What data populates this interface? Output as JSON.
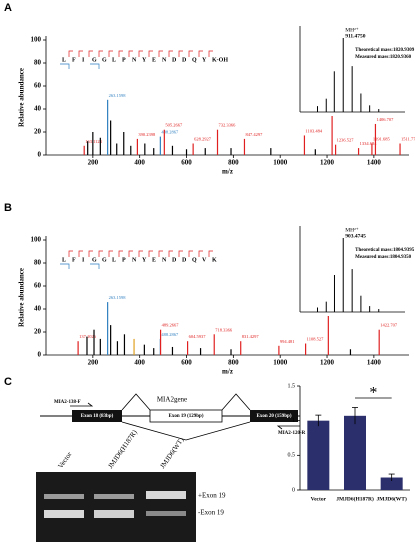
{
  "panel_a": {
    "label": "A",
    "sequence": [
      "L",
      "F",
      "I",
      "G",
      "G",
      "L",
      "P",
      "N",
      "Y",
      "E",
      "N",
      "D",
      "D",
      "Q",
      "Y",
      "K-OH"
    ],
    "y_axis_label": "Relative abundance",
    "x_axis_label": "m/z",
    "xlim": [
      0,
      1550
    ],
    "ylim": [
      0,
      100
    ],
    "xticks": [
      200,
      400,
      600,
      800,
      1000,
      1200,
      1400
    ],
    "yticks": [
      0,
      20,
      40,
      60,
      80,
      100
    ],
    "peaks": [
      {
        "mz": 163.11,
        "intensity": 8,
        "color": "#e02020",
        "label": "163.1123"
      },
      {
        "mz": 178,
        "intensity": 12,
        "color": "#000000"
      },
      {
        "mz": 200,
        "intensity": 20,
        "color": "#000000"
      },
      {
        "mz": 232,
        "intensity": 15,
        "color": "#000000"
      },
      {
        "mz": 263.16,
        "intensity": 48,
        "color": "#2f7fc0",
        "label": "263.1598"
      },
      {
        "mz": 276,
        "intensity": 30,
        "color": "#000000"
      },
      {
        "mz": 302,
        "intensity": 10,
        "color": "#000000"
      },
      {
        "mz": 332,
        "intensity": 20,
        "color": "#000000"
      },
      {
        "mz": 362,
        "intensity": 8,
        "color": "#000000"
      },
      {
        "mz": 390.24,
        "intensity": 14,
        "color": "#e02020",
        "label": "390.2398"
      },
      {
        "mz": 422,
        "intensity": 10,
        "color": "#000000"
      },
      {
        "mz": 460,
        "intensity": 6,
        "color": "#000000"
      },
      {
        "mz": 488.29,
        "intensity": 16,
        "color": "#2f7fc0",
        "label": "488.2867"
      },
      {
        "mz": 505.27,
        "intensity": 22,
        "color": "#e02020",
        "label": "505.2667"
      },
      {
        "mz": 540,
        "intensity": 8,
        "color": "#000000"
      },
      {
        "mz": 600,
        "intensity": 5,
        "color": "#000000"
      },
      {
        "mz": 628.29,
        "intensity": 10,
        "color": "#e02020",
        "label": "628.2927"
      },
      {
        "mz": 680,
        "intensity": 6,
        "color": "#000000"
      },
      {
        "mz": 732.34,
        "intensity": 22,
        "color": "#e02020",
        "label": "732.3366"
      },
      {
        "mz": 790,
        "intensity": 6,
        "color": "#000000"
      },
      {
        "mz": 847.43,
        "intensity": 14,
        "color": "#e02020",
        "label": "847.4297"
      },
      {
        "mz": 960,
        "intensity": 6,
        "color": "#000000"
      },
      {
        "mz": 1103.48,
        "intensity": 17,
        "color": "#e02020",
        "label": "1103.484"
      },
      {
        "mz": 1150,
        "intensity": 5,
        "color": "#000000"
      },
      {
        "mz": 1221.58,
        "intensity": 100,
        "color": "#e02020",
        "label": "1221.58"
      },
      {
        "mz": 1236.53,
        "intensity": 9,
        "color": "#e02020",
        "label": "1236.527"
      },
      {
        "mz": 1334.68,
        "intensity": 6,
        "color": "#e02020",
        "label": "1334.684"
      },
      {
        "mz": 1391.69,
        "intensity": 10,
        "color": "#e02020",
        "label": "1391.685"
      },
      {
        "mz": 1406.71,
        "intensity": 27,
        "color": "#e02020",
        "label": "1406.707"
      },
      {
        "mz": 1511.77,
        "intensity": 10,
        "color": "#e02020",
        "label": "1511.771"
      }
    ],
    "inset": {
      "ion": "MH²⁺",
      "mz": "911.4750",
      "theoretical": "Theoretical mass:1820.9309",
      "measured": "Measured mass:1820.9360",
      "xlim": [
        909,
        915
      ],
      "peaks": [
        {
          "mz": 910.0,
          "intensity": 8
        },
        {
          "mz": 910.5,
          "intensity": 18
        },
        {
          "mz": 910.96,
          "intensity": 55
        },
        {
          "mz": 911.47,
          "intensity": 100
        },
        {
          "mz": 911.98,
          "intensity": 62
        },
        {
          "mz": 912.48,
          "intensity": 25
        },
        {
          "mz": 912.98,
          "intensity": 9
        },
        {
          "mz": 913.5,
          "intensity": 4
        }
      ]
    }
  },
  "panel_b": {
    "label": "B",
    "sequence": [
      "L",
      "F",
      "I",
      "G",
      "G",
      "L",
      "P",
      "N",
      "Y",
      "E",
      "N",
      "D",
      "D",
      "Q",
      "V",
      "K"
    ],
    "y_axis_label": "Relative abundance",
    "x_axis_label": "m/z",
    "xlim": [
      0,
      1550
    ],
    "ylim": [
      0,
      100
    ],
    "xticks": [
      200,
      400,
      600,
      800,
      1000,
      1200,
      1400
    ],
    "yticks": [
      0,
      20,
      40,
      60,
      80,
      100
    ],
    "peaks": [
      {
        "mz": 137.1,
        "intensity": 12,
        "color": "#e02020",
        "label": "137.1026"
      },
      {
        "mz": 175,
        "intensity": 16,
        "color": "#000000"
      },
      {
        "mz": 205,
        "intensity": 22,
        "color": "#000000"
      },
      {
        "mz": 232,
        "intensity": 14,
        "color": "#000000"
      },
      {
        "mz": 263.16,
        "intensity": 46,
        "color": "#2f7fc0",
        "label": "263.1598"
      },
      {
        "mz": 276,
        "intensity": 26,
        "color": "#000000"
      },
      {
        "mz": 305,
        "intensity": 12,
        "color": "#000000"
      },
      {
        "mz": 335,
        "intensity": 18,
        "color": "#000000"
      },
      {
        "mz": 376,
        "intensity": 14,
        "color": "#e0a020"
      },
      {
        "mz": 420,
        "intensity": 9,
        "color": "#000000"
      },
      {
        "mz": 460,
        "intensity": 6,
        "color": "#000000"
      },
      {
        "mz": 488.29,
        "intensity": 14,
        "color": "#2f7fc0",
        "label": "488.2867"
      },
      {
        "mz": 489.27,
        "intensity": 22,
        "color": "#e02020",
        "label": "489.2667"
      },
      {
        "mz": 540,
        "intensity": 7,
        "color": "#000000"
      },
      {
        "mz": 604.59,
        "intensity": 12,
        "color": "#e02020",
        "label": "604.5937"
      },
      {
        "mz": 660,
        "intensity": 6,
        "color": "#000000"
      },
      {
        "mz": 718.34,
        "intensity": 18,
        "color": "#e02020",
        "label": "718.3366"
      },
      {
        "mz": 790,
        "intensity": 5,
        "color": "#000000"
      },
      {
        "mz": 831.43,
        "intensity": 12,
        "color": "#e02020",
        "label": "831.4297"
      },
      {
        "mz": 994.48,
        "intensity": 8,
        "color": "#e02020",
        "label": "994.481"
      },
      {
        "mz": 1108.53,
        "intensity": 10,
        "color": "#e02020",
        "label": "1108.527"
      },
      {
        "mz": 1205.58,
        "intensity": 100,
        "color": "#e02020",
        "label": "1205.58"
      },
      {
        "mz": 1300,
        "intensity": 5,
        "color": "#000000"
      },
      {
        "mz": 1422.71,
        "intensity": 22,
        "color": "#e02020",
        "label": "1422.707"
      }
    ],
    "inset": {
      "ion": "MH²⁺",
      "mz": "903.4745",
      "theoretical": "Theoretical mass:1804.9395",
      "measured": "Measured mass:1804.9350",
      "xlim": [
        901,
        907
      ],
      "peaks": [
        {
          "mz": 902.0,
          "intensity": 6
        },
        {
          "mz": 902.5,
          "intensity": 14
        },
        {
          "mz": 902.97,
          "intensity": 50
        },
        {
          "mz": 903.47,
          "intensity": 100
        },
        {
          "mz": 903.98,
          "intensity": 58
        },
        {
          "mz": 904.48,
          "intensity": 22
        },
        {
          "mz": 904.98,
          "intensity": 8
        },
        {
          "mz": 905.5,
          "intensity": 4
        }
      ]
    }
  },
  "panel_c": {
    "label": "C",
    "gene": "MIA2gene",
    "exons": [
      "Exon 18 (83bp)",
      "Exon 19 (129bp)",
      "Exon 20 (159bp)"
    ],
    "forward_primer": "MIA2-138-F",
    "reverse_primer": "MIA2-120-R",
    "gel": {
      "lanes": [
        "Vector",
        "JMJD6(H187R)",
        "JMJD6(WT)"
      ],
      "bands": [
        "+Exon 19",
        "-Exon 19"
      ]
    },
    "bar_chart": {
      "type": "bar",
      "categories": [
        "Vector",
        "JMJD6(H187R)",
        "JMJD6(WT)"
      ],
      "values": [
        1.0,
        1.07,
        0.18
      ],
      "errors": [
        0.08,
        0.12,
        0.05
      ],
      "color": "#2b2f6b",
      "ylim": [
        0,
        1.5
      ],
      "yticks": [
        0,
        0.5,
        1,
        1.5
      ],
      "significance": "*"
    }
  }
}
